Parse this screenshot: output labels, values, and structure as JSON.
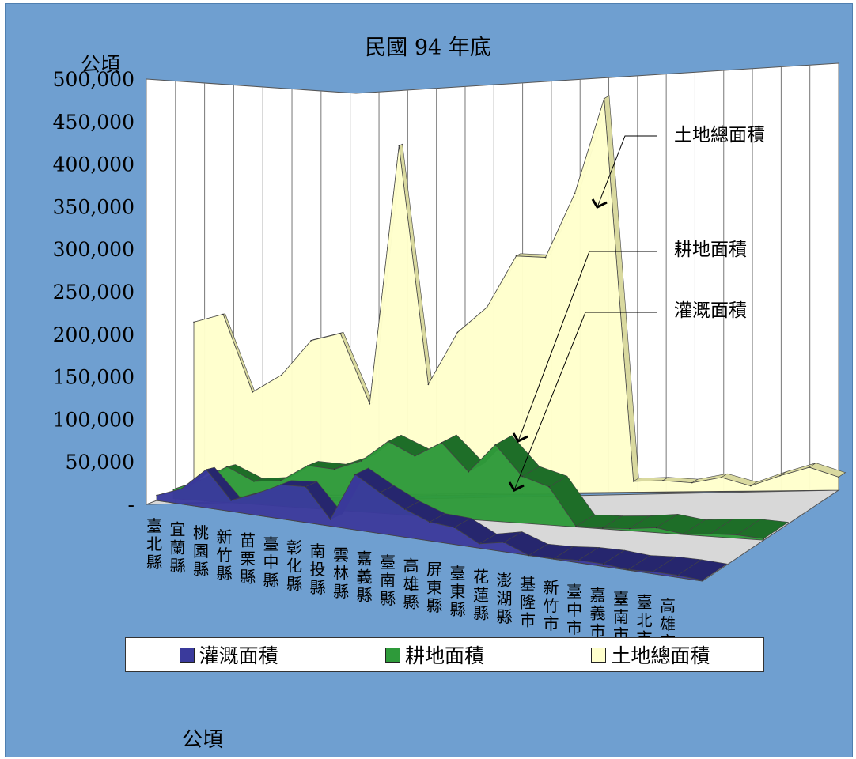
{
  "chart_data": {
    "type": "area",
    "title": "民國 94 年底",
    "ylabel": "公頃",
    "footer_unit": "公頃",
    "ylim": [
      0,
      500000
    ],
    "yticks": [
      "-",
      "50,000",
      "100,000",
      "150,000",
      "200,000",
      "250,000",
      "300,000",
      "350,000",
      "400,000",
      "450,000",
      "500,000"
    ],
    "categories": [
      "臺北縣",
      "宜蘭縣",
      "桃園縣",
      "新竹縣",
      "苗栗縣",
      "臺中縣",
      "彰化縣",
      "南投縣",
      "雲林縣",
      "嘉義縣",
      "臺南縣",
      "高雄縣",
      "屏東縣",
      "臺東縣",
      "花蓮縣",
      "澎湖縣",
      "基隆市",
      "新竹市",
      "臺中市",
      "嘉義市",
      "臺南市",
      "臺北市",
      "高雄市"
    ],
    "series": [
      {
        "name": "灌溉面積",
        "color": "#3a3a9c",
        "values": [
          6000,
          18000,
          45000,
          13000,
          25000,
          40000,
          42000,
          8000,
          65000,
          48000,
          33000,
          22000,
          20000,
          5000,
          11000,
          0,
          500,
          3000,
          3000,
          500,
          2500,
          2500,
          1000
        ]
      },
      {
        "name": "耕地面積",
        "color": "#2e9a3a",
        "values": [
          11000,
          24000,
          42000,
          27000,
          30000,
          50000,
          48000,
          60000,
          85000,
          70000,
          88000,
          56000,
          90000,
          55000,
          45000,
          900,
          1000,
          2500,
          5800,
          600,
          3000,
          4000,
          1900
        ]
      },
      {
        "name": "土地總面積",
        "color": "#ffffcc",
        "values": [
          205000,
          214000,
          122000,
          142000,
          182000,
          190000,
          107000,
          410000,
          129000,
          190000,
          219000,
          279000,
          277000,
          352000,
          463000,
          12700,
          13200,
          10400,
          16300,
          6000,
          17600,
          27200,
          15400
        ]
      }
    ],
    "annotations": [
      "土地總面積",
      "耕地面積",
      "灌溉面積"
    ],
    "legend_position": "bottom"
  }
}
